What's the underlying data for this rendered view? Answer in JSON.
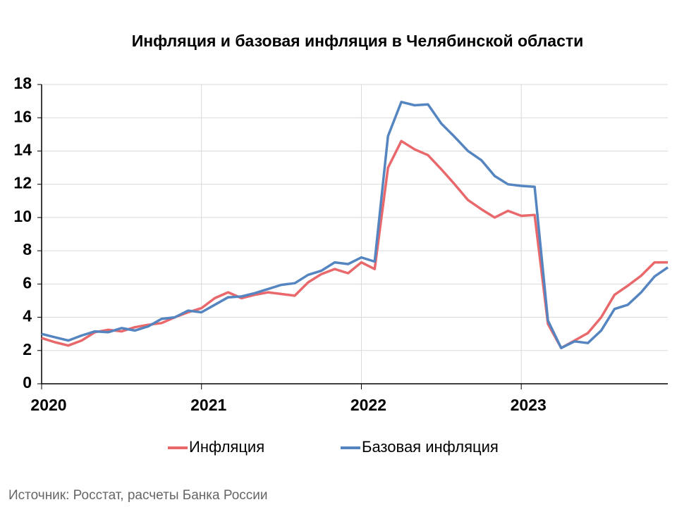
{
  "chart_data": {
    "type": "line",
    "title": "Инфляция и базовая инфляция в Челябинской области",
    "source": "Источник: Росстат, расчеты Банка России",
    "x": [
      2020,
      2020.0833,
      2020.1667,
      2020.25,
      2020.3333,
      2020.4167,
      2020.5,
      2020.5833,
      2020.6667,
      2020.75,
      2020.8333,
      2020.9167,
      2021,
      2021.0833,
      2021.1667,
      2021.25,
      2021.3333,
      2021.4167,
      2021.5,
      2021.5833,
      2021.6667,
      2021.75,
      2021.8333,
      2021.9167,
      2022,
      2022.0833,
      2022.1667,
      2022.25,
      2022.3333,
      2022.4167,
      2022.5,
      2022.5833,
      2022.6667,
      2022.75,
      2022.8333,
      2022.9167,
      2023,
      2023.0833,
      2023.1667,
      2023.25,
      2023.3333,
      2023.4167,
      2023.5,
      2023.5833,
      2023.6667,
      2023.75,
      2023.8333,
      2023.9167
    ],
    "series": [
      {
        "name": "Инфляция",
        "color": "#e8686b",
        "values": [
          2.75,
          2.5,
          2.3,
          2.6,
          3.1,
          3.25,
          3.15,
          3.4,
          3.55,
          3.65,
          4.0,
          4.3,
          4.55,
          5.15,
          5.5,
          5.15,
          5.35,
          5.5,
          5.4,
          5.3,
          6.1,
          6.6,
          6.9,
          6.65,
          7.3,
          6.9,
          13.0,
          14.6,
          14.1,
          13.75,
          12.9,
          12.0,
          11.05,
          10.5,
          10.0,
          10.4,
          10.1,
          10.15,
          3.6,
          2.15,
          2.6,
          3.05,
          4.0,
          5.35,
          5.9,
          6.5,
          7.3,
          7.3
        ]
      },
      {
        "name": "Базовая инфляция",
        "color": "#5585c0",
        "values": [
          3.0,
          2.8,
          2.6,
          2.9,
          3.15,
          3.1,
          3.35,
          3.2,
          3.45,
          3.9,
          4.0,
          4.4,
          4.3,
          4.75,
          5.2,
          5.25,
          5.45,
          5.7,
          5.95,
          6.05,
          6.55,
          6.8,
          7.3,
          7.2,
          7.6,
          7.35,
          14.9,
          16.95,
          16.75,
          16.8,
          15.65,
          14.85,
          14.0,
          13.45,
          12.5,
          12.0,
          11.9,
          11.85,
          3.8,
          2.15,
          2.55,
          2.45,
          3.2,
          4.5,
          4.75,
          5.5,
          6.45,
          7.0
        ]
      }
    ],
    "xlim": [
      2020,
      2023.9167
    ],
    "xticks": [
      2020,
      2021,
      2022,
      2023
    ],
    "ylim": [
      0,
      18
    ],
    "yticks": [
      0,
      2,
      4,
      6,
      8,
      10,
      12,
      14,
      16,
      18
    ],
    "grid": true,
    "legend": "bottom"
  }
}
